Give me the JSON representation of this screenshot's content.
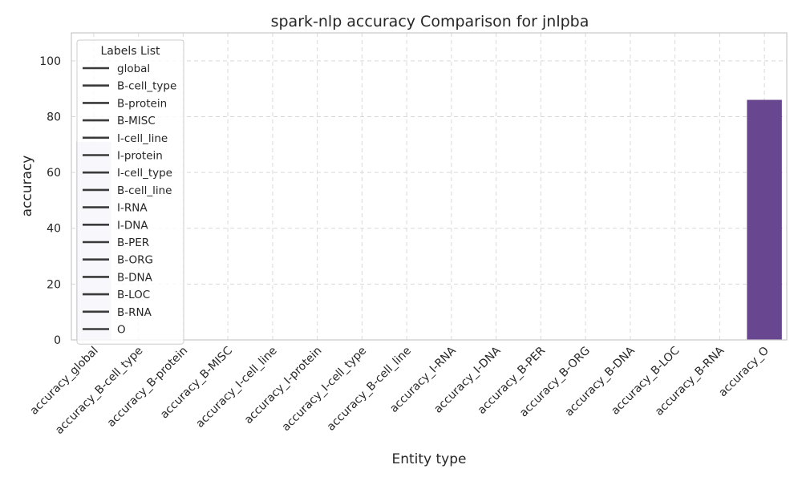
{
  "chart_data": {
    "type": "bar",
    "title": "spark-nlp  accuracy Comparison for jnlpba",
    "xlabel": "Entity type",
    "ylabel": "accuracy",
    "ylim": [
      0,
      110
    ],
    "yticks": [
      0,
      20,
      40,
      60,
      80,
      100
    ],
    "grid": true,
    "categories": [
      "accuracy_global",
      "accuracy_B-cell_type",
      "accuracy_B-protein",
      "accuracy_B-MISC",
      "accuracy_I-cell_line",
      "accuracy_I-protein",
      "accuracy_I-cell_type",
      "accuracy_B-cell_line",
      "accuracy_I-RNA",
      "accuracy_I-DNA",
      "accuracy_B-PER",
      "accuracy_B-ORG",
      "accuracy_B-DNA",
      "accuracy_B-LOC",
      "accuracy_B-RNA",
      "accuracy_O"
    ],
    "values": [
      71,
      0,
      0,
      0,
      0,
      0,
      0,
      0,
      0,
      0,
      0,
      0,
      0,
      0,
      0,
      86
    ],
    "bar_colors": [
      "#dcd6e8",
      "#d4cce4",
      "#cbc2df",
      "#c2b7d9",
      "#b9acd3",
      "#afa1cd",
      "#a596c6",
      "#9b8bc0",
      "#9180b9",
      "#8775b2",
      "#7d6aab",
      "#7560a4",
      "#6f579f",
      "#6c509a",
      "#6a4a95",
      "#684790"
    ],
    "legend": {
      "title": "Labels List",
      "placement": "top-left",
      "entries": [
        "global",
        "B-cell_type",
        "B-protein",
        "B-MISC",
        "I-cell_line",
        "I-protein",
        "I-cell_type",
        "B-cell_line",
        "I-RNA",
        "I-DNA",
        "B-PER",
        "B-ORG",
        "B-DNA",
        "B-LOC",
        "B-RNA",
        "O"
      ]
    }
  }
}
